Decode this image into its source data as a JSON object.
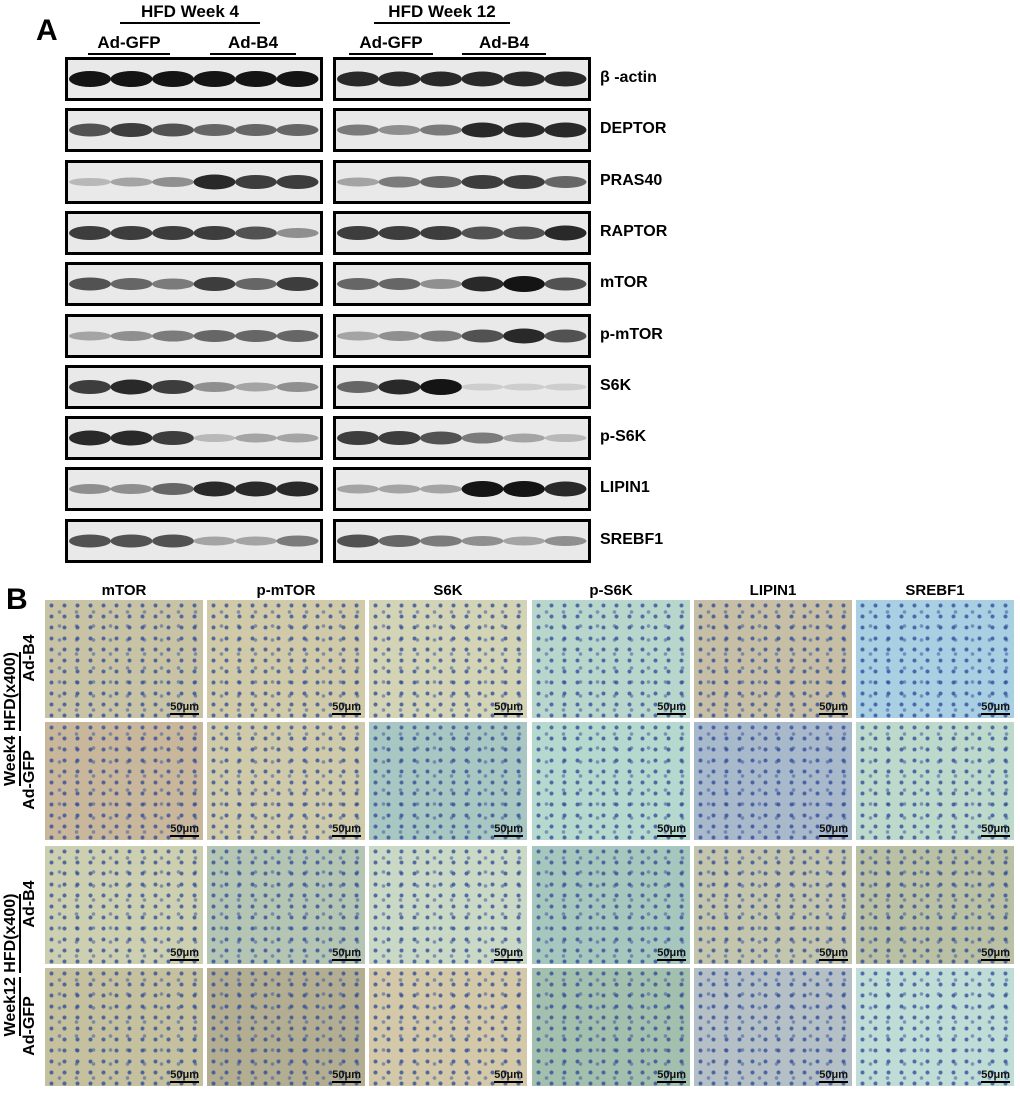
{
  "panel_a": {
    "letter": "A",
    "groups": [
      {
        "title": "HFD Week 4",
        "treatments": [
          "Ad-GFP",
          "Ad-B4"
        ]
      },
      {
        "title": "HFD Week 12",
        "treatments": [
          "Ad-GFP",
          "Ad-B4"
        ]
      }
    ],
    "blots": [
      {
        "label": "β -actin",
        "week4": [
          1,
          1,
          1,
          1,
          1,
          1
        ],
        "week12": [
          0.9,
          0.9,
          0.9,
          0.9,
          0.9,
          0.9
        ]
      },
      {
        "label": "DEPTOR",
        "week4": [
          0.7,
          0.8,
          0.7,
          0.6,
          0.6,
          0.6
        ],
        "week12": [
          0.5,
          0.4,
          0.5,
          0.9,
          0.9,
          0.9
        ]
      },
      {
        "label": "PRAS40",
        "week4": [
          0.2,
          0.3,
          0.4,
          0.9,
          0.8,
          0.8
        ],
        "week12": [
          0.3,
          0.5,
          0.6,
          0.8,
          0.8,
          0.6
        ]
      },
      {
        "label": "RAPTOR",
        "week4": [
          0.8,
          0.8,
          0.8,
          0.8,
          0.7,
          0.4
        ],
        "week12": [
          0.8,
          0.8,
          0.8,
          0.7,
          0.7,
          0.9
        ]
      },
      {
        "label": "mTOR",
        "week4": [
          0.7,
          0.6,
          0.5,
          0.8,
          0.6,
          0.8
        ],
        "week12": [
          0.6,
          0.6,
          0.4,
          0.9,
          1,
          0.7
        ]
      },
      {
        "label": "p-mTOR",
        "week4": [
          0.3,
          0.4,
          0.5,
          0.6,
          0.6,
          0.6
        ],
        "week12": [
          0.3,
          0.4,
          0.5,
          0.7,
          0.9,
          0.7
        ]
      },
      {
        "label": "S6K",
        "week4": [
          0.8,
          0.9,
          0.8,
          0.4,
          0.3,
          0.4
        ],
        "week12": [
          0.6,
          0.9,
          1,
          0.1,
          0.1,
          0.1
        ]
      },
      {
        "label": "p-S6K",
        "week4": [
          0.9,
          0.9,
          0.8,
          0.2,
          0.3,
          0.3
        ],
        "week12": [
          0.8,
          0.8,
          0.7,
          0.5,
          0.3,
          0.2
        ]
      },
      {
        "label": "LIPIN1",
        "week4": [
          0.4,
          0.4,
          0.6,
          0.9,
          0.9,
          0.9
        ],
        "week12": [
          0.3,
          0.3,
          0.3,
          1,
          1,
          0.9
        ]
      },
      {
        "label": "SREBF1",
        "week4": [
          0.7,
          0.7,
          0.7,
          0.3,
          0.3,
          0.5
        ],
        "week12": [
          0.7,
          0.6,
          0.5,
          0.4,
          0.3,
          0.4
        ]
      }
    ]
  },
  "panel_b": {
    "letter": "B",
    "columns": [
      "mTOR",
      "p-mTOR",
      "S6K",
      "p-S6K",
      "LIPIN1",
      "SREBF1"
    ],
    "scale_bar": "50μm",
    "groups": [
      {
        "week": "Week4",
        "condition": "HFD(x400)",
        "rows": [
          {
            "label": "Ad-B4",
            "colors": [
              "#c9c3a6",
              "#d0caa8",
              "#d3d3b6",
              "#b9d6cd",
              "#c6bfa6",
              "#a9cfe3"
            ]
          },
          {
            "label": "Ad-GFP",
            "colors": [
              "#c9b79c",
              "#cfcaa9",
              "#a9c7c2",
              "#b5d9ce",
              "#a9b9cc",
              "#bcd9cc"
            ]
          }
        ]
      },
      {
        "week": "Week12",
        "condition": "HFD(x400)",
        "rows": [
          {
            "label": "Ad-B4",
            "colors": [
              "#cdd0b0",
              "#b5c5b4",
              "#cad8c6",
              "#a6c7bd",
              "#c3c5ad",
              "#b9c0a4"
            ]
          },
          {
            "label": "Ad-GFP",
            "colors": [
              "#c5c09e",
              "#b3ad92",
              "#d3c8a8",
              "#a3bfae",
              "#b5c0c6",
              "#bfdcd6"
            ]
          }
        ]
      }
    ]
  }
}
